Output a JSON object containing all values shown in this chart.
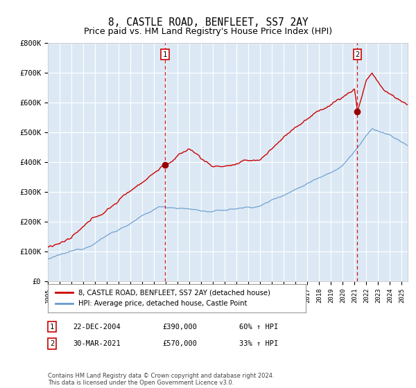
{
  "title": "8, CASTLE ROAD, BENFLEET, SS7 2AY",
  "subtitle": "Price paid vs. HM Land Registry's House Price Index (HPI)",
  "title_fontsize": 10.5,
  "subtitle_fontsize": 9,
  "bg_color": "#dce9f5",
  "grid_color": "#ffffff",
  "hpi_line_color": "#6699cc",
  "price_line_color": "#cc0000",
  "marker_color": "#990000",
  "vline_color": "#cc0000",
  "legend_label_price": "8, CASTLE ROAD, BENFLEET, SS7 2AY (detached house)",
  "legend_label_hpi": "HPI: Average price, detached house, Castle Point",
  "point1_date_str": "22-DEC-2004",
  "point1_price": 390000,
  "point1_hpi_pct": "60% ↑ HPI",
  "point2_date_str": "30-MAR-2021",
  "point2_price": 570000,
  "point2_hpi_pct": "33% ↑ HPI",
  "footer": "Contains HM Land Registry data © Crown copyright and database right 2024.\nThis data is licensed under the Open Government Licence v3.0.",
  "ylim": [
    0,
    800000
  ],
  "yticks": [
    0,
    100000,
    200000,
    300000,
    400000,
    500000,
    600000,
    700000,
    800000
  ],
  "ytick_labels": [
    "£0",
    "£100K",
    "£200K",
    "£300K",
    "£400K",
    "£500K",
    "£600K",
    "£700K",
    "£800K"
  ],
  "x_start_year": 1995,
  "x_end_year": 2025
}
